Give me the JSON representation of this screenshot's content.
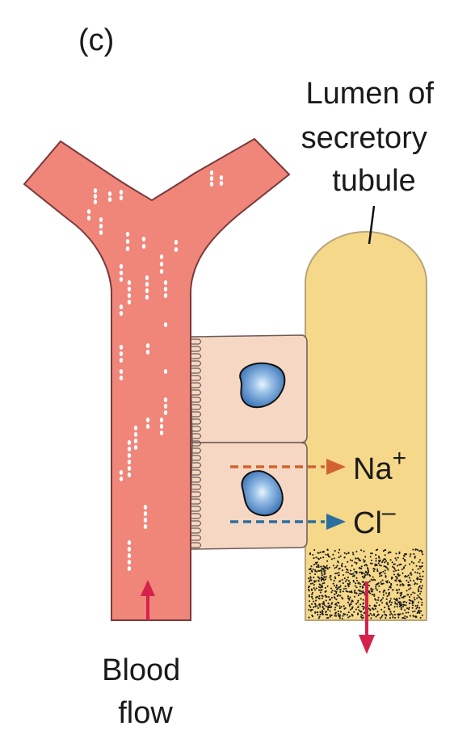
{
  "panel_label": "(c)",
  "lumen_label": [
    "Lumen of",
    "secretory",
    "tubule"
  ],
  "ions": {
    "sodium": {
      "symbol": "Na",
      "charge": "+",
      "color": "#d2622f"
    },
    "chloride": {
      "symbol": "Cl",
      "charge": "–",
      "color": "#2a6f9e"
    }
  },
  "blood_flow_label": [
    "Blood",
    "flow"
  ],
  "colors": {
    "blood_vessel": "#f08579",
    "vessel_outline": "#7a3a3a",
    "cell": "#f6d7c3",
    "tubule": "#f5d88a",
    "tubule_outline": "#b9a57a",
    "nucleus": "#4f86c6",
    "arrow_red": "#d6224a"
  }
}
